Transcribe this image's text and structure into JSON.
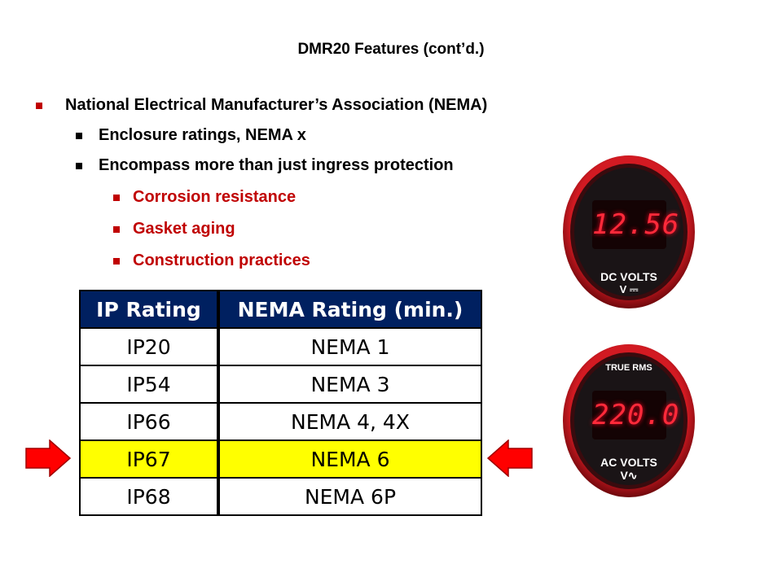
{
  "slide": {
    "title": "DMR20 Features (cont’d.)",
    "bullets": {
      "nema_heading": "National Electrical Manufacturer’s Association (NEMA)",
      "enclosure": "Enclosure ratings, NEMA x",
      "encompass": "Encompass more than just ingress protection",
      "corrosion": "Corrosion resistance",
      "gasket": "Gasket aging",
      "construction": "Construction practices"
    }
  },
  "table": {
    "headers": [
      "IP Rating",
      "NEMA Rating (min.)"
    ],
    "rows": [
      [
        "IP20",
        "NEMA 1"
      ],
      [
        "IP54",
        "NEMA 3"
      ],
      [
        "IP66",
        "NEMA 4, 4X"
      ],
      [
        "IP67",
        "NEMA 6"
      ],
      [
        "IP68",
        "NEMA 6P"
      ]
    ],
    "highlight_row": 3,
    "header_color": "#002060",
    "highlight_color": "#ffff00"
  },
  "meters": {
    "dc": {
      "reading": "12.56",
      "label": "DC VOLTS",
      "unit": "V ⎓"
    },
    "ac": {
      "top_label": "TRUE RMS",
      "reading": "220.0",
      "label": "AC VOLTS",
      "unit": "V∿"
    }
  },
  "colors": {
    "accent_red": "#c00000",
    "arrow_red": "#ff0000",
    "bezel": "#b0141c"
  }
}
